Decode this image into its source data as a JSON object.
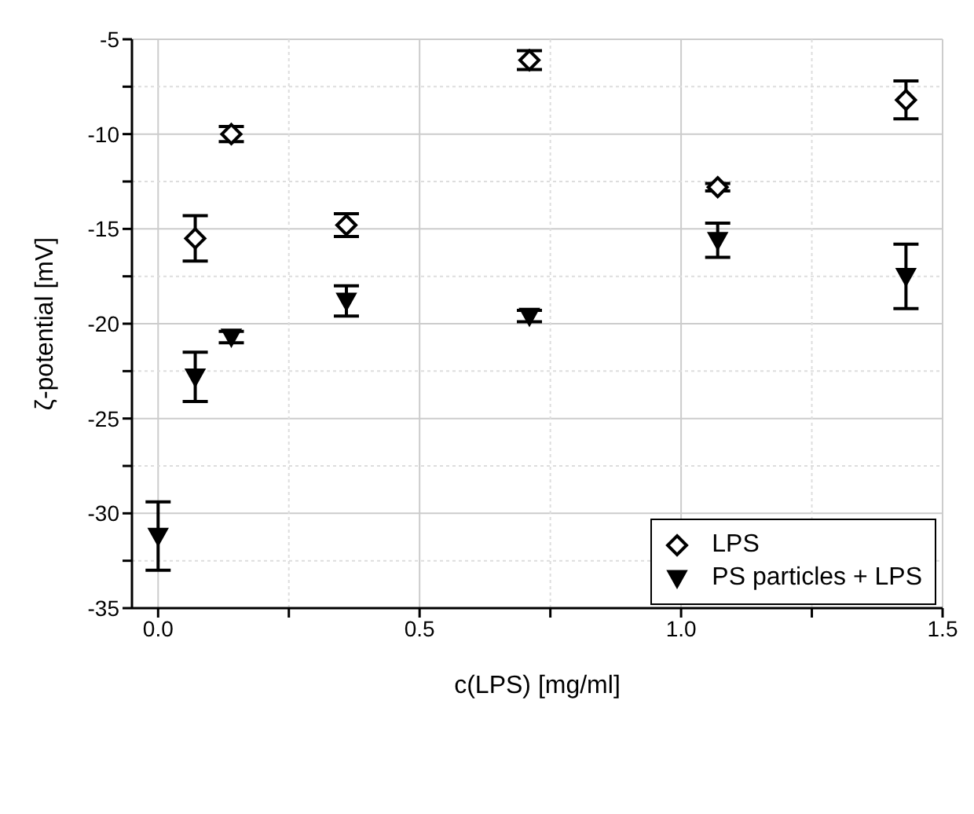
{
  "chart_data": {
    "type": "scatter",
    "xlabel": "c(LPS) [mg/ml]",
    "ylabel": "ζ-potential [mV]",
    "xlim": [
      -0.05,
      1.5
    ],
    "ylim": [
      -35,
      -5
    ],
    "xticks": [
      {
        "value": 0,
        "label": "0.0"
      },
      {
        "value": 0.25,
        "label": null
      },
      0.5,
      {
        "value": 0.75,
        "label": null
      },
      {
        "value": 1,
        "label": "1.0"
      },
      {
        "value": 1.25,
        "label": null
      },
      1.5
    ],
    "yticks": [
      -35,
      {
        "value": -32.5,
        "label": null
      },
      -30,
      {
        "value": -27.5,
        "label": null
      },
      -25,
      {
        "value": -22.5,
        "label": null
      },
      -20,
      {
        "value": -17.5,
        "label": null
      },
      -15,
      {
        "value": -12.5,
        "label": null
      },
      -10,
      {
        "value": -7.5,
        "label": null
      },
      -5
    ],
    "grid": true,
    "legend": "bottom right",
    "series": [
      {
        "name": "LPS",
        "color": "#000000",
        "marker": "diamond",
        "x": [
          0.071,
          0.14,
          0.36,
          0.71,
          1.07,
          1.43
        ],
        "values": [
          -15.5,
          -10,
          -14.8,
          -6.1,
          -12.8,
          -8.2
        ],
        "errors": [
          1.2,
          0.4,
          0.6,
          0.5,
          0.2,
          1.0
        ]
      },
      {
        "name": "PS particles + LPS",
        "color": "#000000",
        "marker": "triangle",
        "x": [
          0,
          0.071,
          0.14,
          0.36,
          0.71,
          1.07,
          1.43
        ],
        "values": [
          -31.2,
          -22.8,
          -20.7,
          -18.8,
          -19.6,
          -15.6,
          -17.5
        ],
        "errors": [
          1.8,
          1.3,
          0.3,
          0.8,
          0.3,
          0.9,
          1.7
        ]
      }
    ]
  }
}
